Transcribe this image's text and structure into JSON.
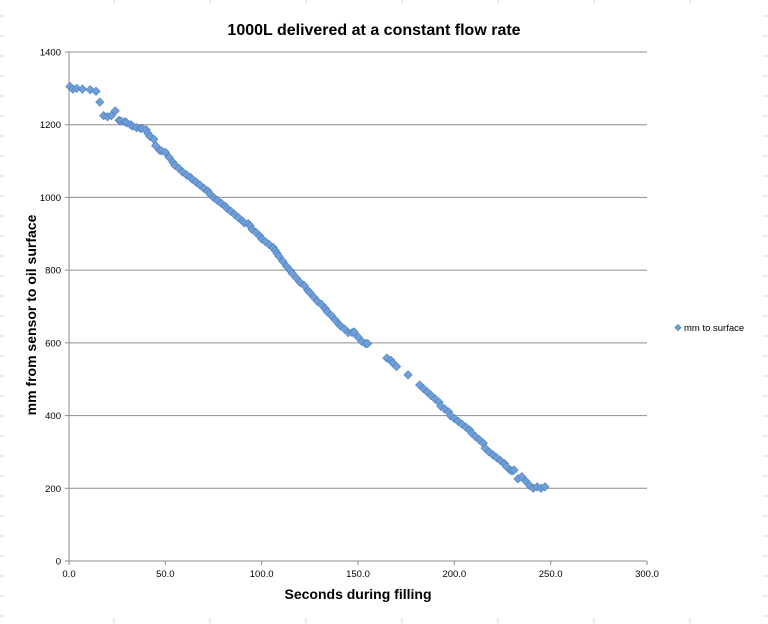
{
  "colors": {
    "marker": "#6f9fd8",
    "marker_stroke": "#4f7fbf",
    "gridline": "#8c8c8c",
    "axis": "#8c8c8c",
    "sheet_grid": "#d9d9d9"
  },
  "chart_data": {
    "type": "scatter",
    "title": "1000L delivered at a constant flow rate",
    "xlabel": "Seconds during filling",
    "ylabel": "mm from sensor to oil surface",
    "xlim": [
      0,
      300
    ],
    "ylim": [
      0,
      1400
    ],
    "x_ticks": [
      "0.0",
      "50.0",
      "100.0",
      "150.0",
      "200.0",
      "250.0",
      "300.0"
    ],
    "y_ticks": [
      "0",
      "200",
      "400",
      "600",
      "800",
      "1000",
      "1200",
      "1400"
    ],
    "grid": "horizontal",
    "legend": "right",
    "marker": "diamond-icon",
    "series": [
      {
        "name": "mm to surface",
        "x": [
          0.5,
          2,
          4,
          7,
          11,
          14,
          16,
          18,
          20,
          22,
          24,
          26,
          27,
          29,
          30,
          32,
          33,
          35,
          37,
          38,
          40,
          41,
          42,
          44,
          45,
          47,
          48,
          50,
          52,
          54,
          55,
          57,
          59,
          61,
          63,
          64,
          66,
          68,
          70,
          72,
          73,
          75,
          77,
          79,
          81,
          82,
          84,
          86,
          88,
          90,
          91,
          93,
          94,
          95,
          97,
          99,
          100,
          102,
          104,
          106,
          107,
          108,
          109,
          111,
          113,
          115,
          116,
          118,
          120,
          122,
          124,
          125,
          127,
          129,
          131,
          133,
          134,
          136,
          138,
          140,
          141,
          143,
          145,
          147,
          148,
          150,
          152,
          154,
          155,
          165,
          167,
          168,
          170,
          176,
          182,
          184,
          186,
          188,
          190,
          192,
          193,
          195,
          197,
          198,
          200,
          202,
          204,
          206,
          208,
          209,
          211,
          213,
          215,
          216,
          218,
          220,
          222,
          224,
          226,
          227,
          229,
          230,
          231,
          233,
          235,
          237,
          239,
          241,
          243,
          245,
          247
        ],
        "y": [
          1305,
          1298,
          1300,
          1298,
          1296,
          1292,
          1262,
          1225,
          1222,
          1225,
          1238,
          1212,
          1210,
          1208,
          1205,
          1200,
          1196,
          1192,
          1190,
          1190,
          1186,
          1176,
          1168,
          1160,
          1142,
          1130,
          1128,
          1124,
          1110,
          1096,
          1088,
          1080,
          1070,
          1062,
          1055,
          1050,
          1042,
          1034,
          1025,
          1018,
          1010,
          1000,
          992,
          984,
          976,
          970,
          962,
          953,
          944,
          935,
          930,
          928,
          922,
          912,
          904,
          894,
          886,
          878,
          870,
          862,
          854,
          846,
          838,
          824,
          810,
          798,
          790,
          778,
          766,
          758,
          744,
          738,
          726,
          714,
          706,
          694,
          686,
          676,
          664,
          652,
          646,
          638,
          628,
          628,
          630,
          616,
          604,
          598,
          598,
          558,
          552,
          545,
          535,
          512,
          484,
          474,
          465,
          455,
          446,
          437,
          426,
          418,
          410,
          400,
          392,
          384,
          376,
          368,
          360,
          352,
          342,
          333,
          324,
          310,
          300,
          292,
          284,
          276,
          268,
          260,
          250,
          248,
          250,
          226,
          232,
          220,
          208,
          200,
          204,
          200,
          204
        ]
      }
    ]
  }
}
